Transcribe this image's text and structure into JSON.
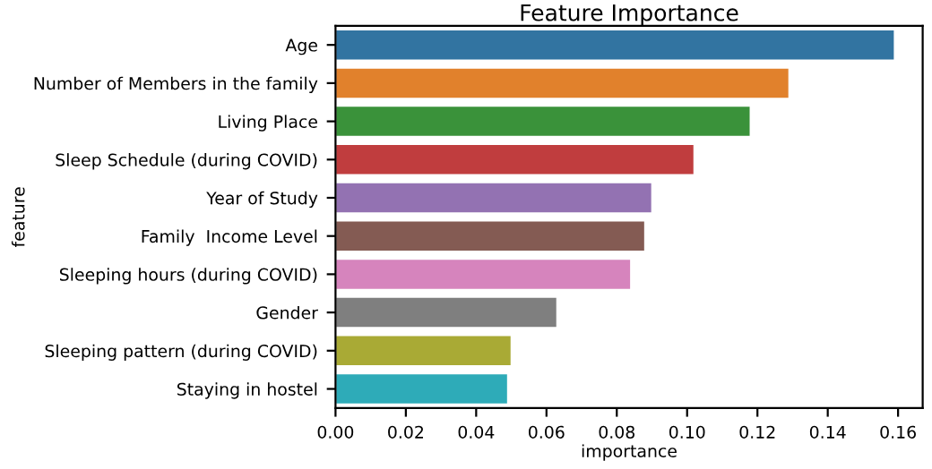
{
  "chart_data": {
    "type": "bar",
    "orientation": "horizontal",
    "title": "Feature Importance",
    "xlabel": "importance",
    "ylabel": "feature",
    "categories": [
      "Age",
      "Number of Members in the family",
      "Living Place",
      "Sleep Schedule (during COVID)",
      "Year of Study",
      "Family  Income Level",
      "Sleeping hours (during COVID)",
      "Gender",
      "Sleeping pattern (during COVID)",
      "Staying in hostel"
    ],
    "values": [
      0.159,
      0.129,
      0.118,
      0.102,
      0.09,
      0.088,
      0.084,
      0.063,
      0.05,
      0.049
    ],
    "colors": [
      "#3274a1",
      "#e1812c",
      "#3a923a",
      "#c03d3e",
      "#9372b2",
      "#845b53",
      "#d684bd",
      "#7f7f7f",
      "#a9aa35",
      "#2eabb8"
    ],
    "xlim": [
      0,
      0.167
    ],
    "xticks": [
      {
        "value": 0,
        "label": "0.00"
      },
      {
        "value": 0.02,
        "label": "0.02"
      },
      {
        "value": 0.04,
        "label": "0.04"
      },
      {
        "value": 0.06,
        "label": "0.06"
      },
      {
        "value": 0.08,
        "label": "0.08"
      },
      {
        "value": 0.1,
        "label": "0.10"
      },
      {
        "value": 0.12,
        "label": "0.12"
      },
      {
        "value": 0.14,
        "label": "0.14"
      },
      {
        "value": 0.16,
        "label": "0.16"
      }
    ],
    "grid": false,
    "legend": false
  }
}
